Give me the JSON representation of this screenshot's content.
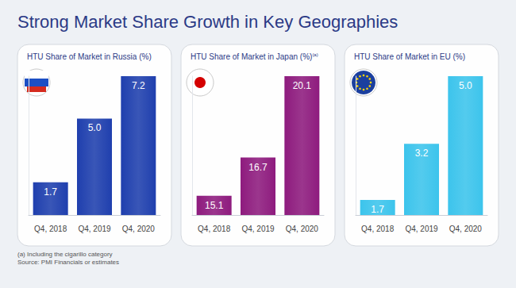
{
  "title": "Strong Market Share Growth in Key Geographies",
  "footnotes": [
    "(a) Including the cigarillo category",
    "Source: PMI Financials or estimates"
  ],
  "chart_data": [
    {
      "type": "bar",
      "title": "HTU Share of Market in Russia (%)",
      "categories": [
        "Q4, 2018",
        "Q4, 2019",
        "Q4, 2020"
      ],
      "values": [
        1.7,
        5.0,
        7.2
      ],
      "value_labels": [
        "1.7",
        "5.0",
        "7.2"
      ],
      "color": "#1f3fae",
      "ylim": [
        0,
        7.2
      ],
      "yticks": [],
      "data_labels": true,
      "tick_labels": "x",
      "grid": false
    },
    {
      "type": "bar",
      "title": "HTU Share of Market in Japan (%)",
      "title_note": "(a)",
      "categories": [
        "Q4, 2018",
        "Q4, 2019",
        "Q4, 2020"
      ],
      "values": [
        15.1,
        16.7,
        20.1
      ],
      "value_labels": [
        "15.1",
        "16.7",
        "20.1"
      ],
      "color": "#8e1b7e",
      "ylim": [
        14.3,
        20.1
      ],
      "yticks": [],
      "data_labels": true,
      "tick_labels": "x",
      "grid": false
    },
    {
      "type": "bar",
      "title": "HTU Share of Market in EU (%)",
      "categories": [
        "Q4, 2018",
        "Q4, 2019",
        "Q4, 2020"
      ],
      "values": [
        1.7,
        3.2,
        5.0
      ],
      "value_labels": [
        "1.7",
        "3.2",
        "5.0"
      ],
      "color": "#3cc4ec",
      "ylim": [
        1.3,
        5.0
      ],
      "yticks": [],
      "data_labels": true,
      "tick_labels": "x",
      "grid": false
    }
  ]
}
